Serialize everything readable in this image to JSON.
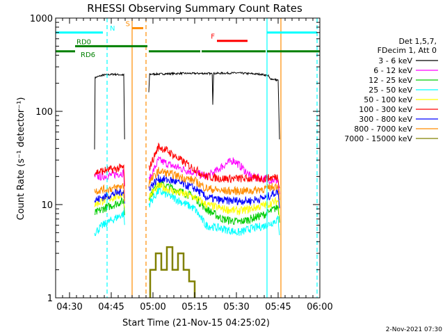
{
  "chart_data": {
    "type": "line",
    "title": "RHESSI Observing Summary Count Rates",
    "xlabel": "Start Time (21-Nov-15 04:25:02)",
    "ylabel": "Count Rate (s⁻¹ detector⁻¹)",
    "yscale": "log",
    "ylim": [
      1,
      1000
    ],
    "xlim_minutes": [
      0,
      95
    ],
    "yticks": [
      {
        "value": 1,
        "label": "1"
      },
      {
        "value": 10,
        "label": "10"
      },
      {
        "value": 100,
        "label": "100"
      },
      {
        "value": 1000,
        "label": "1000"
      }
    ],
    "xticks": [
      {
        "minute": 5,
        "label": "04:30"
      },
      {
        "minute": 20,
        "label": "04:45"
      },
      {
        "minute": 35,
        "label": "05:00"
      },
      {
        "minute": 50,
        "label": "05:15"
      },
      {
        "minute": 65,
        "label": "05:30"
      },
      {
        "minute": 80,
        "label": "05:45"
      },
      {
        "minute": 95,
        "label": "06:00"
      }
    ],
    "legend_header": [
      "Det 1,5,7,",
      "FDecim 1, Att 0"
    ],
    "series": [
      {
        "name": "3 - 6 keV",
        "color": "#000000",
        "points": [
          [
            14,
            40
          ],
          [
            14.2,
            230
          ],
          [
            17,
            245
          ],
          [
            21,
            250
          ],
          [
            24.5,
            245
          ],
          [
            24.8,
            50
          ],
          [
            null,
            null
          ],
          [
            33.5,
            160
          ],
          [
            33.8,
            250
          ],
          [
            45,
            255
          ],
          [
            55,
            255
          ],
          [
            56.3,
            252
          ],
          [
            56.5,
            120
          ],
          [
            56.8,
            255
          ],
          [
            65,
            258
          ],
          [
            74,
            250
          ],
          [
            76.5,
            240
          ],
          [
            77,
            225
          ],
          [
            80,
            215
          ],
          [
            80.5,
            50
          ]
        ]
      },
      {
        "name": "6 - 12 keV",
        "color": "#ff00ff",
        "points": [
          [
            14,
            20
          ],
          [
            17,
            20
          ],
          [
            21,
            21
          ],
          [
            24.5,
            22
          ],
          [
            24.8,
            12
          ],
          [
            null,
            null
          ],
          [
            33.5,
            18
          ],
          [
            37,
            30
          ],
          [
            42,
            26
          ],
          [
            50,
            22
          ],
          [
            54,
            20
          ],
          [
            57,
            22
          ],
          [
            60,
            26
          ],
          [
            64,
            30
          ],
          [
            67,
            25
          ],
          [
            70,
            20
          ],
          [
            75,
            19
          ],
          [
            80,
            18
          ],
          [
            80.5,
            12
          ]
        ]
      },
      {
        "name": "12 - 25 keV",
        "color": "#00cc00",
        "points": [
          [
            14,
            8
          ],
          [
            17,
            9
          ],
          [
            21,
            10
          ],
          [
            24.5,
            11
          ],
          [
            24.8,
            8
          ],
          [
            null,
            null
          ],
          [
            33.5,
            12
          ],
          [
            37,
            17
          ],
          [
            42,
            15
          ],
          [
            50,
            12
          ],
          [
            54,
            9
          ],
          [
            60,
            7
          ],
          [
            66,
            6.5
          ],
          [
            70,
            7
          ],
          [
            76,
            8
          ],
          [
            80,
            9.5
          ],
          [
            80.5,
            7
          ]
        ]
      },
      {
        "name": "25 - 50 keV",
        "color": "#00ffff",
        "points": [
          [
            14,
            5
          ],
          [
            17,
            6
          ],
          [
            21,
            7
          ],
          [
            24.5,
            8
          ],
          [
            24.8,
            6
          ],
          [
            null,
            null
          ],
          [
            33.5,
            10
          ],
          [
            37,
            14
          ],
          [
            42,
            12
          ],
          [
            50,
            9
          ],
          [
            54,
            6
          ],
          [
            60,
            5.5
          ],
          [
            66,
            5
          ],
          [
            70,
            5.5
          ],
          [
            76,
            6
          ],
          [
            80,
            7
          ],
          [
            80.5,
            5
          ]
        ]
      },
      {
        "name": "50 - 100 keV",
        "color": "#ffff00",
        "points": [
          [
            14,
            10
          ],
          [
            17,
            11
          ],
          [
            21,
            12
          ],
          [
            24.5,
            13
          ],
          [
            24.8,
            9
          ],
          [
            null,
            null
          ],
          [
            33.5,
            12
          ],
          [
            37,
            16
          ],
          [
            42,
            14
          ],
          [
            50,
            12
          ],
          [
            54,
            10
          ],
          [
            60,
            9
          ],
          [
            66,
            8.5
          ],
          [
            70,
            9
          ],
          [
            76,
            10
          ],
          [
            80,
            11
          ],
          [
            80.5,
            8
          ]
        ]
      },
      {
        "name": "100 - 300 keV",
        "color": "#ff0000",
        "points": [
          [
            14,
            22
          ],
          [
            17,
            23
          ],
          [
            21,
            24
          ],
          [
            24.5,
            25
          ],
          [
            24.8,
            15
          ],
          [
            null,
            null
          ],
          [
            33.5,
            24
          ],
          [
            37,
            42
          ],
          [
            40,
            38
          ],
          [
            45,
            30
          ],
          [
            50,
            24
          ],
          [
            54,
            20
          ],
          [
            60,
            19
          ],
          [
            66,
            19
          ],
          [
            70,
            19
          ],
          [
            76,
            19
          ],
          [
            80,
            20
          ],
          [
            80.5,
            15
          ]
        ]
      },
      {
        "name": "300 - 800 keV",
        "color": "#0000ff",
        "points": [
          [
            14,
            11
          ],
          [
            17,
            12
          ],
          [
            21,
            13
          ],
          [
            24.5,
            14
          ],
          [
            24.8,
            10
          ],
          [
            null,
            null
          ],
          [
            33.5,
            15
          ],
          [
            37,
            19
          ],
          [
            42,
            18
          ],
          [
            50,
            15
          ],
          [
            54,
            12
          ],
          [
            60,
            11
          ],
          [
            66,
            11
          ],
          [
            70,
            11
          ],
          [
            76,
            12
          ],
          [
            80,
            14
          ],
          [
            80.5,
            10
          ]
        ]
      },
      {
        "name": "800 - 7000 keV",
        "color": "#ff8c00",
        "points": [
          [
            14,
            14
          ],
          [
            17,
            14.5
          ],
          [
            21,
            15
          ],
          [
            24.5,
            16
          ],
          [
            24.8,
            11
          ],
          [
            null,
            null
          ],
          [
            33.5,
            17
          ],
          [
            37,
            23
          ],
          [
            42,
            21
          ],
          [
            50,
            18
          ],
          [
            54,
            15
          ],
          [
            60,
            14
          ],
          [
            66,
            14
          ],
          [
            70,
            14
          ],
          [
            76,
            15
          ],
          [
            80,
            16
          ],
          [
            80.5,
            12
          ]
        ]
      },
      {
        "name": "7000 - 15000 keV",
        "color": "#808000",
        "points": [
          [
            34,
            1
          ],
          [
            34,
            2
          ],
          [
            36,
            2
          ],
          [
            36,
            3
          ],
          [
            38,
            3
          ],
          [
            38,
            2
          ],
          [
            40,
            2
          ],
          [
            40,
            3.5
          ],
          [
            42,
            3.5
          ],
          [
            42,
            2
          ],
          [
            44,
            2
          ],
          [
            44,
            3
          ],
          [
            46,
            3
          ],
          [
            46,
            2
          ],
          [
            48,
            2
          ],
          [
            48,
            1.5
          ],
          [
            50,
            1.5
          ],
          [
            50,
            1
          ]
        ]
      }
    ],
    "vlines": [
      {
        "minute": 18.5,
        "color": "#00ffff",
        "dashed": true
      },
      {
        "minute": 27.5,
        "color": "#ff8c00",
        "dashed": false
      },
      {
        "minute": 32.5,
        "color": "#ff8c00",
        "dashed": true
      },
      {
        "minute": 76,
        "color": "#00ffff",
        "dashed": false
      },
      {
        "minute": 81,
        "color": "#ff8c00",
        "dashed": false
      },
      {
        "minute": 94,
        "color": "#00ffff",
        "dashed": true
      }
    ],
    "flag_bars": [
      {
        "label": "N",
        "color": "#00ffff",
        "segments": [
          [
            0,
            17
          ],
          [
            76,
            94
          ]
        ],
        "level": 700
      },
      {
        "label": "S",
        "color": "#ff8c00",
        "segments": [
          [
            27.5,
            31.5
          ]
        ],
        "level": 780
      },
      {
        "label": "F",
        "color": "#ff0000",
        "segments": [
          [
            58,
            69
          ]
        ],
        "level": 570
      },
      {
        "label": "RD0",
        "color": "#008000",
        "segments": [
          [
            7,
            33
          ]
        ],
        "level": 500
      },
      {
        "label": "RD6",
        "color": "#008000",
        "segments": [
          [
            0,
            7
          ],
          [
            33.5,
            52
          ],
          [
            52.5,
            75.5
          ],
          [
            76,
            95
          ]
        ],
        "level": 440
      }
    ]
  },
  "footer": {
    "date_stamp": "2-Nov-2021 07:30"
  }
}
